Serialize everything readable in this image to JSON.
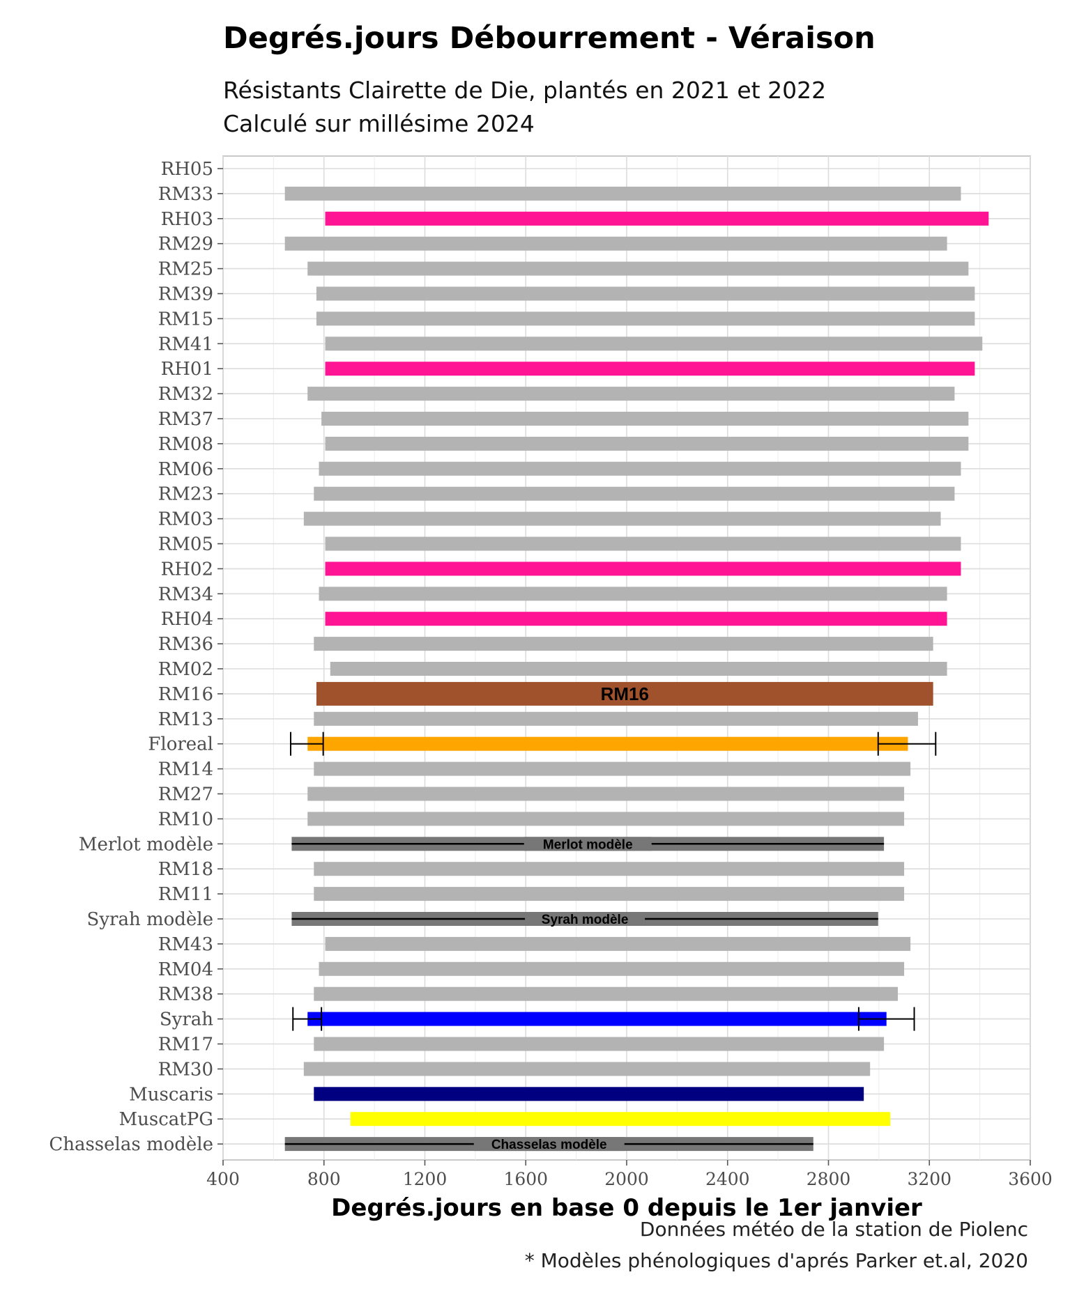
{
  "chart_data": {
    "type": "bar",
    "orientation": "horizontal-range",
    "title": "Degrés.jours Débourrement - Véraison",
    "subtitle_lines": [
      "Résistants Clairette de Die, plantés en 2021 et 2022",
      "Calculé sur millésime 2024"
    ],
    "xlabel": "Degrés.jours en base 0 depuis le 1er janvier",
    "xlim": [
      400,
      3600
    ],
    "xticks": [
      400,
      800,
      1200,
      1600,
      2000,
      2400,
      2800,
      3200,
      3600
    ],
    "grid": true,
    "captions": [
      "Données météo de la station de Piolenc",
      "* Modèles phénologiques d'aprés Parker et.al, 2020"
    ],
    "bars": [
      {
        "label": "RH05",
        "start": null,
        "end": null,
        "color": "#b3b3b3"
      },
      {
        "label": "RM33",
        "start": 645,
        "end": 3325,
        "color": "#b3b3b3"
      },
      {
        "label": "RH03",
        "start": 805,
        "end": 3435,
        "color": "#ff1493"
      },
      {
        "label": "RM29",
        "start": 645,
        "end": 3270,
        "color": "#b3b3b3"
      },
      {
        "label": "RM25",
        "start": 735,
        "end": 3355,
        "color": "#b3b3b3"
      },
      {
        "label": "RM39",
        "start": 770,
        "end": 3380,
        "color": "#b3b3b3"
      },
      {
        "label": "RM15",
        "start": 770,
        "end": 3380,
        "color": "#b3b3b3"
      },
      {
        "label": "RM41",
        "start": 805,
        "end": 3410,
        "color": "#b3b3b3"
      },
      {
        "label": "RH01",
        "start": 805,
        "end": 3380,
        "color": "#ff1493"
      },
      {
        "label": "RM32",
        "start": 735,
        "end": 3300,
        "color": "#b3b3b3"
      },
      {
        "label": "RM37",
        "start": 790,
        "end": 3355,
        "color": "#b3b3b3"
      },
      {
        "label": "RM08",
        "start": 805,
        "end": 3355,
        "color": "#b3b3b3"
      },
      {
        "label": "RM06",
        "start": 780,
        "end": 3325,
        "color": "#b3b3b3"
      },
      {
        "label": "RM23",
        "start": 760,
        "end": 3300,
        "color": "#b3b3b3"
      },
      {
        "label": "RM03",
        "start": 720,
        "end": 3245,
        "color": "#b3b3b3"
      },
      {
        "label": "RM05",
        "start": 805,
        "end": 3325,
        "color": "#b3b3b3"
      },
      {
        "label": "RH02",
        "start": 805,
        "end": 3325,
        "color": "#ff1493"
      },
      {
        "label": "RM34",
        "start": 780,
        "end": 3270,
        "color": "#b3b3b3"
      },
      {
        "label": "RH04",
        "start": 805,
        "end": 3270,
        "color": "#ff1493"
      },
      {
        "label": "RM36",
        "start": 760,
        "end": 3215,
        "color": "#b3b3b3"
      },
      {
        "label": "RM02",
        "start": 825,
        "end": 3270,
        "color": "#b3b3b3"
      },
      {
        "label": "RM16",
        "start": 770,
        "end": 3215,
        "color": "#a0522d",
        "inner_label": "RM16",
        "thick": true
      },
      {
        "label": "RM13",
        "start": 760,
        "end": 3155,
        "color": "#b3b3b3"
      },
      {
        "label": "Floreal",
        "start": 735,
        "end": 3115,
        "color": "#ffa500",
        "err_start": [
          668,
          797
        ],
        "err_end": [
          2997,
          3225
        ]
      },
      {
        "label": "RM14",
        "start": 760,
        "end": 3125,
        "color": "#b3b3b3"
      },
      {
        "label": "RM27",
        "start": 735,
        "end": 3100,
        "color": "#b3b3b3"
      },
      {
        "label": "RM10",
        "start": 735,
        "end": 3100,
        "color": "#b3b3b3"
      },
      {
        "label": "Merlot modèle",
        "start": 672,
        "end": 3020,
        "color": "#777777",
        "inner_label": "Merlot modèle",
        "line": true
      },
      {
        "label": "RM18",
        "start": 760,
        "end": 3100,
        "color": "#b3b3b3"
      },
      {
        "label": "RM11",
        "start": 760,
        "end": 3100,
        "color": "#b3b3b3"
      },
      {
        "label": "Syrah modèle",
        "start": 672,
        "end": 2997,
        "color": "#777777",
        "inner_label": "Syrah modèle",
        "line": true
      },
      {
        "label": "RM43",
        "start": 805,
        "end": 3125,
        "color": "#b3b3b3"
      },
      {
        "label": "RM04",
        "start": 780,
        "end": 3100,
        "color": "#b3b3b3"
      },
      {
        "label": "RM38",
        "start": 760,
        "end": 3075,
        "color": "#b3b3b3"
      },
      {
        "label": "Syrah",
        "start": 735,
        "end": 3030,
        "color": "#0000ff",
        "err_start": [
          677,
          790
        ],
        "err_end": [
          2920,
          3140
        ]
      },
      {
        "label": "RM17",
        "start": 760,
        "end": 3020,
        "color": "#b3b3b3"
      },
      {
        "label": "RM30",
        "start": 720,
        "end": 2965,
        "color": "#b3b3b3"
      },
      {
        "label": "Muscaris",
        "start": 760,
        "end": 2940,
        "color": "#000080"
      },
      {
        "label": "MuscatPG",
        "start": 905,
        "end": 3045,
        "color": "#ffff00"
      },
      {
        "label": "Chasselas modèle",
        "start": 645,
        "end": 2740,
        "color": "#777777",
        "inner_label": "Chasselas modèle",
        "line": true
      }
    ]
  }
}
